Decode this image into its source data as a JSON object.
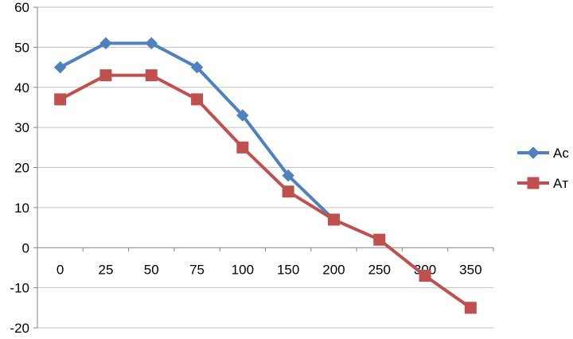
{
  "chart_data": {
    "type": "line",
    "categories": [
      "0",
      "25",
      "50",
      "75",
      "100",
      "150",
      "200",
      "250",
      "300",
      "350"
    ],
    "series": [
      {
        "name": "Ac",
        "color": "#4f81bd",
        "marker": "diamond",
        "values": [
          45,
          51,
          51,
          45,
          33,
          18,
          7,
          null,
          null,
          null
        ]
      },
      {
        "name": "Aт",
        "color": "#c0504d",
        "marker": "square",
        "values": [
          37,
          43,
          43,
          37,
          25,
          14,
          7,
          2,
          -7,
          -15
        ]
      }
    ],
    "title": "",
    "xlabel": "",
    "ylabel": "",
    "ylim": [
      -20,
      60
    ],
    "yticks": [
      -20,
      -10,
      0,
      10,
      20,
      30,
      40,
      50,
      60
    ],
    "ytick_labels": [
      "-20",
      "-10",
      "0",
      "10",
      "20",
      "30",
      "40",
      "50",
      "60"
    ],
    "grid": "horizontal",
    "legend": "right"
  }
}
